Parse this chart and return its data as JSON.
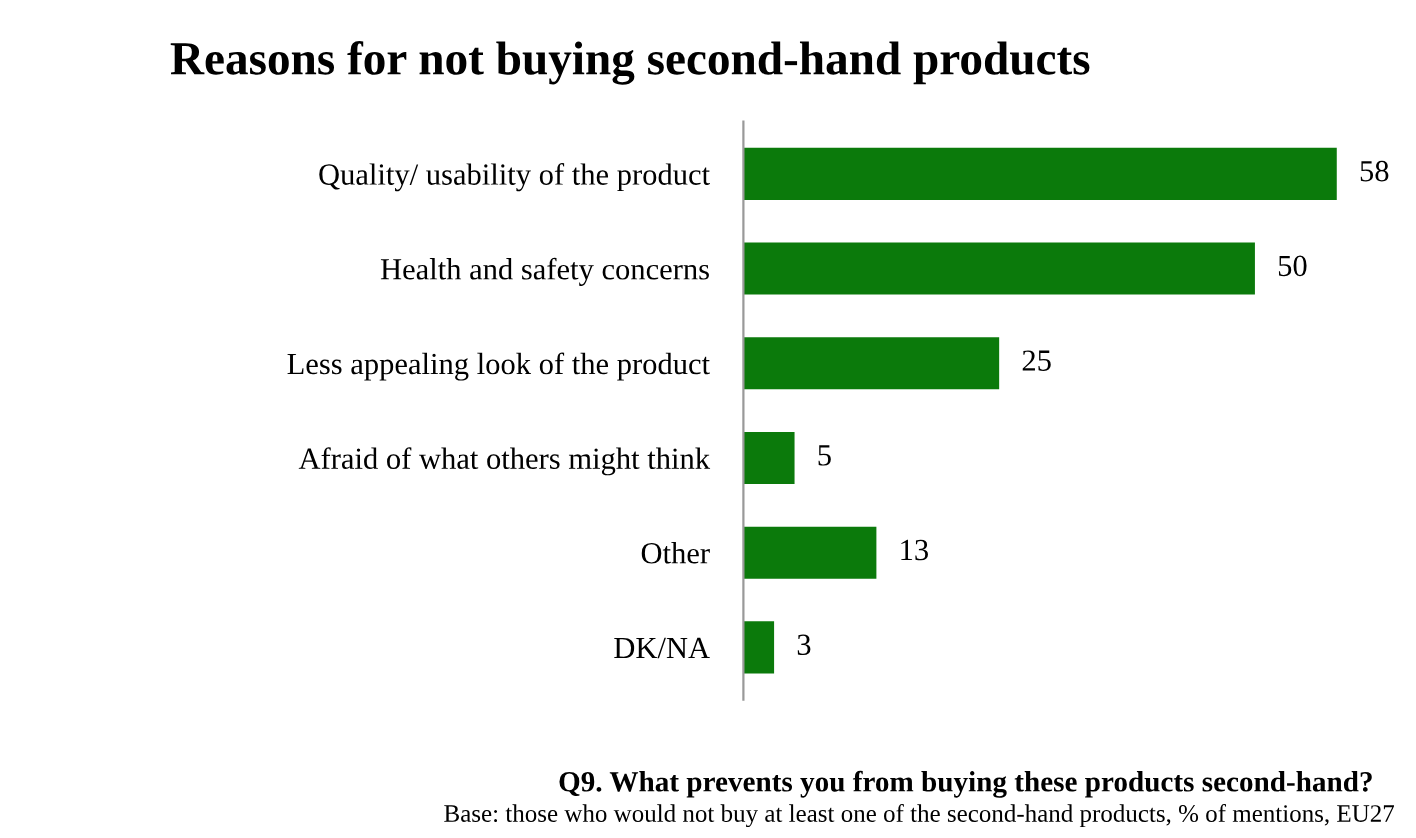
{
  "chart_data": {
    "type": "bar",
    "orientation": "horizontal",
    "title": "Reasons for not buying second-hand products",
    "categories": [
      "Quality/ usability of the product",
      "Health and safety concerns",
      "Less appealing look of the product",
      "Afraid of what others might think",
      "Other",
      "DK/NA"
    ],
    "values": [
      58,
      50,
      25,
      5,
      13,
      3
    ],
    "color": "#0b7a0b",
    "data_labels": true,
    "tick_labels": "y",
    "grid": false,
    "legend": false,
    "annotations": [
      "Q9. What prevents you from buying these products second-hand?",
      "Base: those who would not buy at least one of the second-hand products, % of mentions, EU27"
    ]
  }
}
